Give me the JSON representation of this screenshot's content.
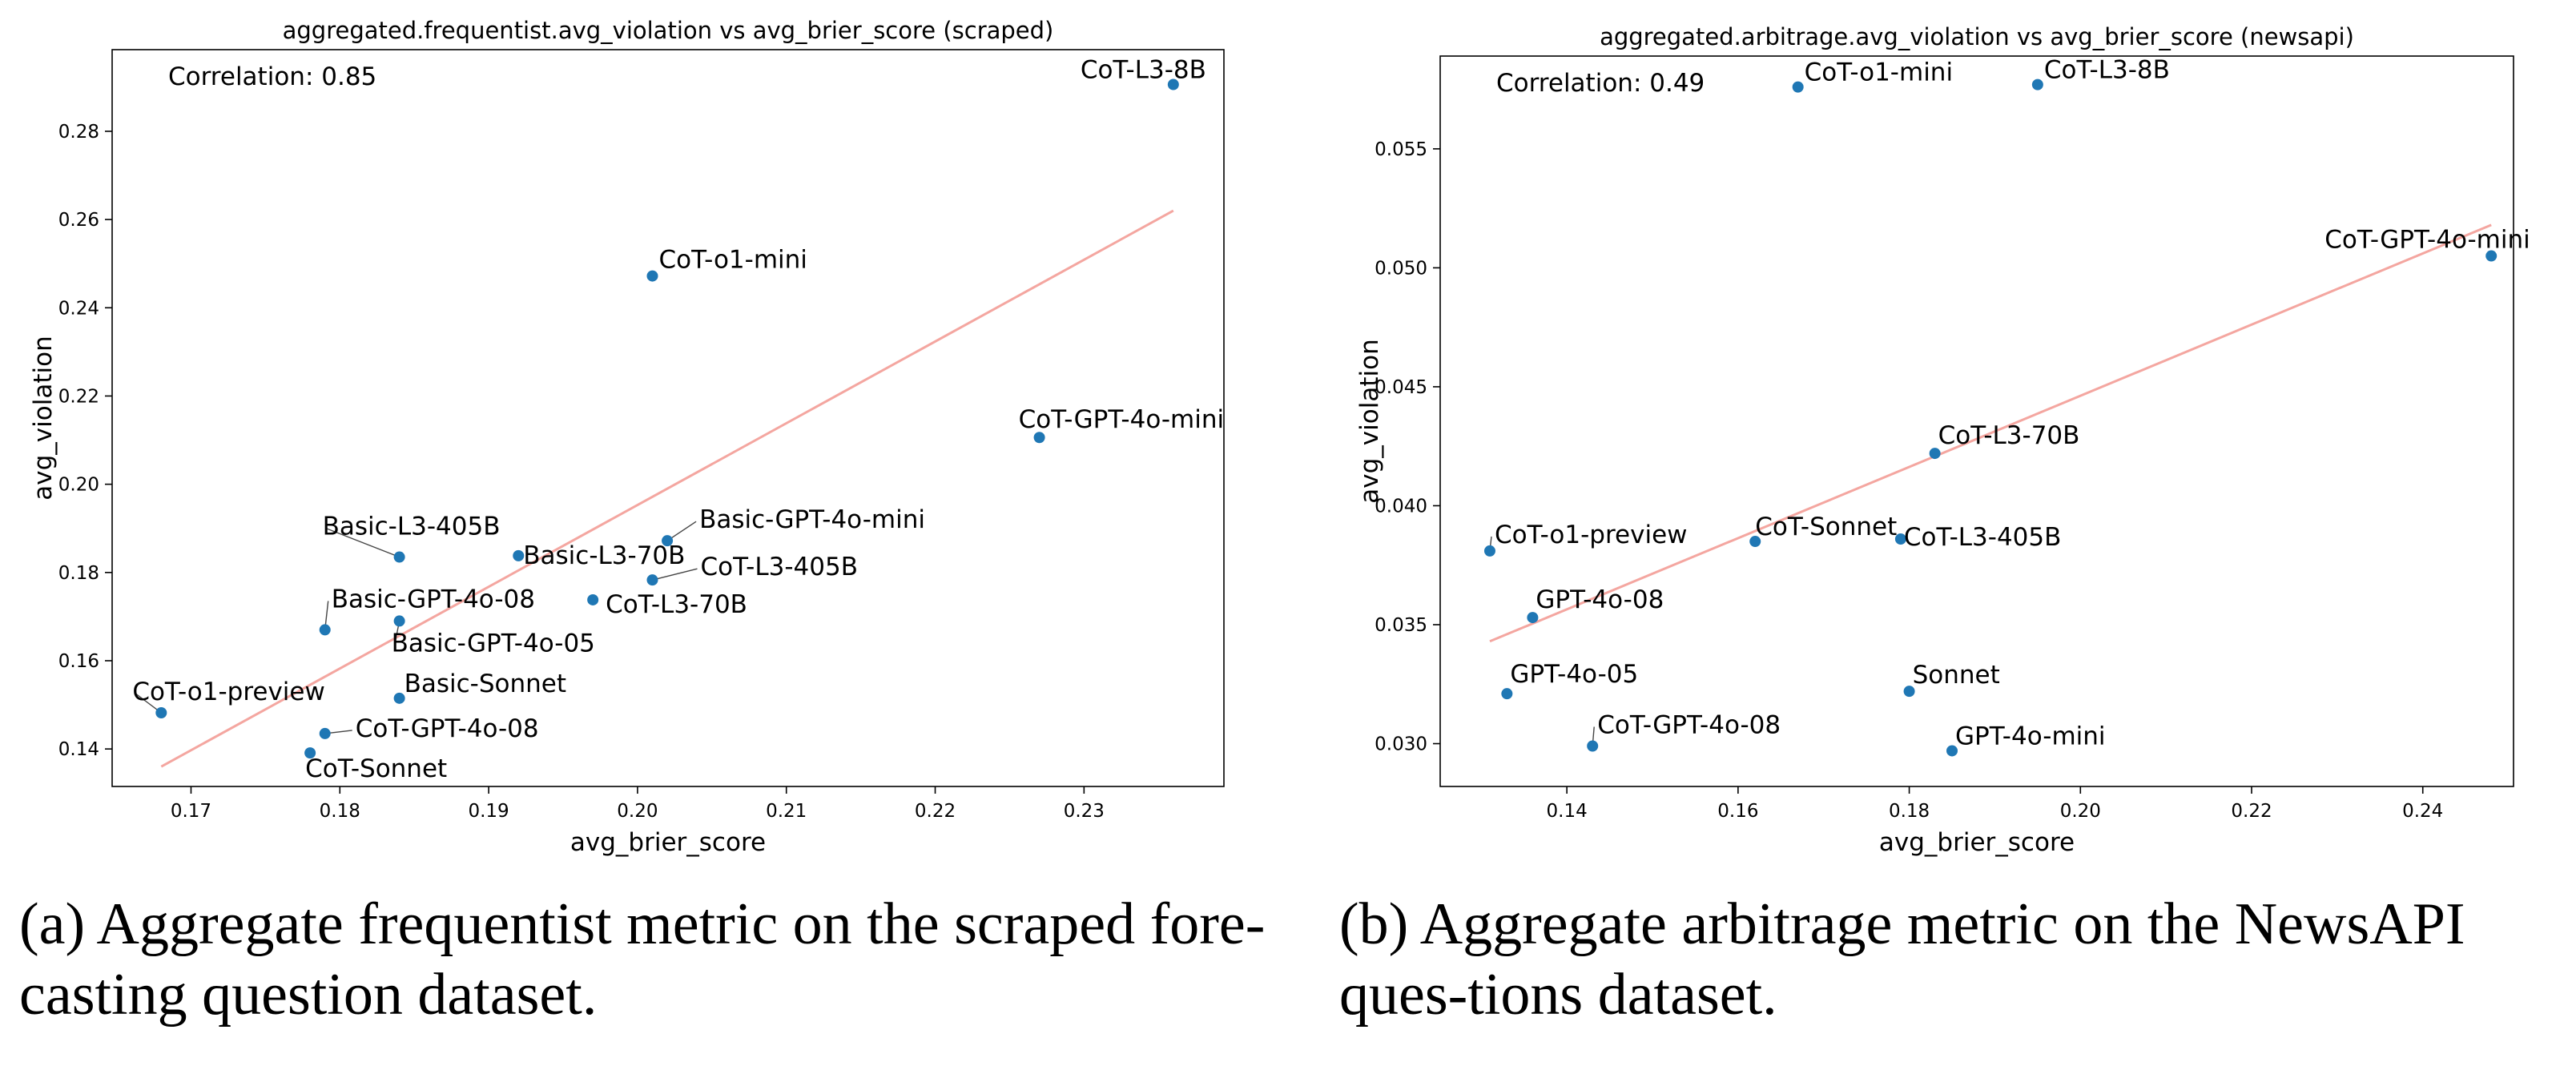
{
  "chart_data": [
    {
      "type": "scatter",
      "title": "aggregated.frequentist.avg_violation vs avg_brier_score (scraped)",
      "xlabel": "avg_brier_score",
      "ylabel": "avg_violation",
      "annotation": "Correlation: 0.85",
      "xlim": [
        0.1647,
        0.2394
      ],
      "ylim": [
        0.1315,
        0.2985
      ],
      "xticks": [
        0.17,
        0.18,
        0.19,
        0.2,
        0.21,
        0.22,
        0.23
      ],
      "yticks": [
        0.14,
        0.16,
        0.18,
        0.2,
        0.22,
        0.24,
        0.26,
        0.28
      ],
      "grid": false,
      "point_color": "#1f77b4",
      "trend_color": "#f4a6a0",
      "trendline": {
        "x": [
          0.168,
          0.236
        ],
        "y": [
          0.136,
          0.262
        ]
      },
      "points": [
        {
          "label": "CoT-L3-8B",
          "x": 0.236,
          "y": 0.2906
        },
        {
          "label": "CoT-o1-mini",
          "x": 0.201,
          "y": 0.2472
        },
        {
          "label": "CoT-GPT-4o-mini",
          "x": 0.227,
          "y": 0.2106
        },
        {
          "label": "Basic-L3-405B",
          "x": 0.184,
          "y": 0.1835
        },
        {
          "label": "Basic-L3-70B",
          "x": 0.192,
          "y": 0.1838
        },
        {
          "label": "Basic-GPT-4o-mini",
          "x": 0.202,
          "y": 0.1872
        },
        {
          "label": "CoT-L3-405B",
          "x": 0.201,
          "y": 0.1783
        },
        {
          "label": "CoT-L3-70B",
          "x": 0.197,
          "y": 0.1738
        },
        {
          "label": "Basic-GPT-4o-08",
          "x": 0.179,
          "y": 0.167
        },
        {
          "label": "Basic-GPT-4o-05",
          "x": 0.184,
          "y": 0.169
        },
        {
          "label": "Basic-Sonnet",
          "x": 0.184,
          "y": 0.1515
        },
        {
          "label": "CoT-o1-preview",
          "x": 0.168,
          "y": 0.1482
        },
        {
          "label": "CoT-GPT-4o-08",
          "x": 0.179,
          "y": 0.1435
        },
        {
          "label": "CoT-Sonnet",
          "x": 0.178,
          "y": 0.1391
        }
      ],
      "caption": "(a) Aggregate frequentist metric on the scraped fore-casting question dataset."
    },
    {
      "type": "scatter",
      "title": "aggregated.arbitrage.avg_violation vs avg_brier_score (newsapi)",
      "xlabel": "avg_brier_score",
      "ylabel": "avg_violation",
      "annotation": "Correlation: 0.49",
      "xlim": [
        0.1252,
        0.2506
      ],
      "ylim": [
        0.0282,
        0.0589
      ],
      "xticks": [
        0.14,
        0.16,
        0.18,
        0.2,
        0.22,
        0.24
      ],
      "yticks": [
        0.03,
        0.035,
        0.04,
        0.045,
        0.05,
        0.055
      ],
      "grid": false,
      "point_color": "#1f77b4",
      "trend_color": "#f4a6a0",
      "trendline": {
        "x": [
          0.131,
          0.248
        ],
        "y": [
          0.0343,
          0.0518
        ]
      },
      "points": [
        {
          "label": "CoT-o1-mini",
          "x": 0.167,
          "y": 0.0576
        },
        {
          "label": "CoT-L3-8B",
          "x": 0.195,
          "y": 0.0577
        },
        {
          "label": "CoT-GPT-4o-mini",
          "x": 0.248,
          "y": 0.0505
        },
        {
          "label": "CoT-L3-70B",
          "x": 0.183,
          "y": 0.0422
        },
        {
          "label": "CoT-o1-preview",
          "x": 0.131,
          "y": 0.0381
        },
        {
          "label": "CoT-Sonnet",
          "x": 0.162,
          "y": 0.0385
        },
        {
          "label": "CoT-L3-405B",
          "x": 0.179,
          "y": 0.0386
        },
        {
          "label": "GPT-4o-08",
          "x": 0.136,
          "y": 0.0353
        },
        {
          "label": "GPT-4o-05",
          "x": 0.133,
          "y": 0.0321
        },
        {
          "label": "Sonnet",
          "x": 0.18,
          "y": 0.0322
        },
        {
          "label": "CoT-GPT-4o-08",
          "x": 0.143,
          "y": 0.0299
        },
        {
          "label": "GPT-4o-mini",
          "x": 0.185,
          "y": 0.0297
        }
      ],
      "caption": "(b) Aggregate arbitrage metric on the NewsAPI ques-tions dataset."
    }
  ]
}
